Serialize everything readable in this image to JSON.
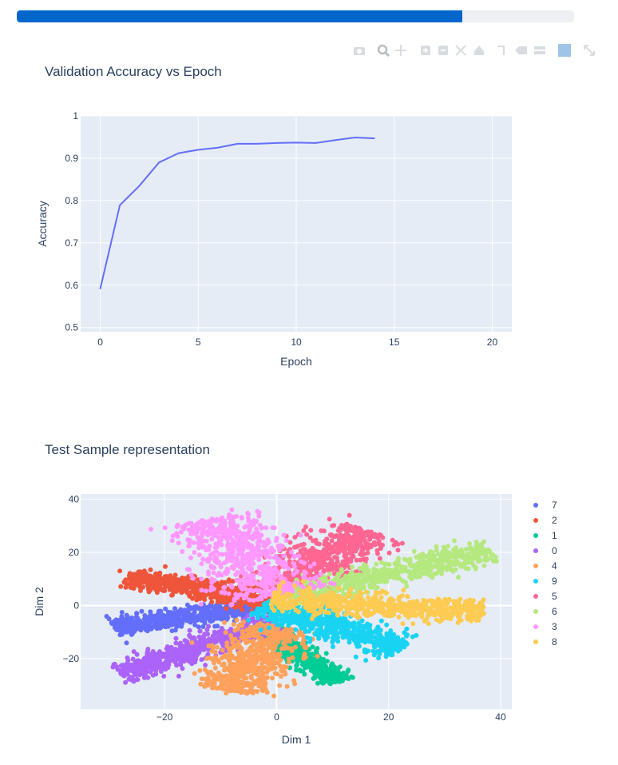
{
  "progress": {
    "value": 0.8
  },
  "modebar": {
    "icons": [
      "camera-icon",
      "zoom-icon",
      "pan-icon",
      "zoom-in-icon",
      "zoom-out-icon",
      "autoscale-icon",
      "home-icon",
      "spike-lines-icon",
      "hover-closest-icon",
      "hover-compare-icon",
      "plotly-logo-icon",
      "fullscreen-icon"
    ]
  },
  "chart_data": [
    {
      "type": "line",
      "title": "Validation Accuracy vs Epoch",
      "xlabel": "Epoch",
      "ylabel": "Accuracy",
      "xlim": [
        -1,
        21
      ],
      "ylim": [
        0.49,
        1.0
      ],
      "xticks": [
        0,
        5,
        10,
        15,
        20
      ],
      "xtick_labels": [
        "0",
        "5",
        "10",
        "15",
        "20"
      ],
      "yticks": [
        0.5,
        0.6,
        0.7,
        0.8,
        0.9,
        1.0
      ],
      "ytick_labels": [
        "0.5",
        "0.6",
        "0.7",
        "0.8",
        "0.9",
        "1"
      ],
      "grid": true,
      "color": "#636efa",
      "x": [
        0,
        1,
        2,
        3,
        4,
        5,
        6,
        7,
        8,
        9,
        10,
        11,
        12,
        13,
        14
      ],
      "y": [
        0.591,
        0.789,
        0.835,
        0.89,
        0.912,
        0.92,
        0.925,
        0.934,
        0.934,
        0.936,
        0.937,
        0.936,
        0.943,
        0.949,
        0.947
      ]
    },
    {
      "type": "scatter",
      "title": "Test Sample representation",
      "xlabel": "Dim 1",
      "ylabel": "Dim 2",
      "xlim": [
        -35,
        42
      ],
      "ylim": [
        -39,
        42
      ],
      "xticks": [
        -20,
        0,
        20,
        40
      ],
      "xtick_labels": [
        "−20",
        "0",
        "20",
        "40"
      ],
      "yticks": [
        -20,
        0,
        20,
        40
      ],
      "ytick_labels": [
        "−20",
        "0",
        "20",
        "40"
      ],
      "grid": true,
      "legend_position": "right",
      "series": [
        {
          "name": "7",
          "color": "#636efa",
          "center": [
            -15,
            -4
          ],
          "direction": [
            0.93,
            0.3
          ],
          "length": 30,
          "width": 3.5,
          "points": [
            [
              -29,
              -6
            ],
            [
              -24,
              -7
            ],
            [
              -19,
              -5
            ],
            [
              -14,
              -4
            ],
            [
              -9,
              -2
            ],
            [
              -5,
              -1
            ],
            [
              -2,
              0
            ]
          ]
        },
        {
          "name": "2",
          "color": "#ef553b",
          "center": [
            -13,
            6
          ],
          "direction": [
            0.92,
            -0.3
          ],
          "length": 30,
          "width": 4.0,
          "points": [
            [
              -28,
              13
            ],
            [
              -23,
              10
            ],
            [
              -18,
              8
            ],
            [
              -13,
              6
            ],
            [
              -8,
              4
            ],
            [
              -4,
              2
            ],
            [
              -1,
              1
            ]
          ]
        },
        {
          "name": "1",
          "color": "#00cc96",
          "center": [
            4,
            -18
          ],
          "direction": [
            0.55,
            -0.83
          ],
          "length": 26,
          "width": 3.0,
          "points": [
            [
              0,
              -5
            ],
            [
              2,
              -10
            ],
            [
              4,
              -15
            ],
            [
              6,
              -20
            ],
            [
              7,
              -25
            ],
            [
              8,
              -29
            ]
          ]
        },
        {
          "name": "0",
          "color": "#ab63fa",
          "center": [
            -14,
            -16
          ],
          "direction": [
            0.82,
            0.57
          ],
          "length": 34,
          "width": 4.0,
          "points": [
            [
              -27,
              -29
            ],
            [
              -22,
              -24
            ],
            [
              -17,
              -19
            ],
            [
              -12,
              -14
            ],
            [
              -7,
              -9
            ],
            [
              -3,
              -4
            ]
          ]
        },
        {
          "name": "4",
          "color": "#ffa15a",
          "center": [
            -4,
            -20
          ],
          "direction": [
            0.3,
            0.95
          ],
          "length": 26,
          "width": 7.0,
          "points": [
            [
              -9,
              -33
            ],
            [
              -7,
              -27
            ],
            [
              -5,
              -22
            ],
            [
              -3,
              -16
            ],
            [
              -2,
              -10
            ],
            [
              0,
              -4
            ]
          ]
        },
        {
          "name": "9",
          "color": "#19d3f3",
          "center": [
            10,
            -8
          ],
          "direction": [
            0.85,
            -0.52
          ],
          "length": 30,
          "width": 5.0,
          "points": [
            [
              2,
              -2
            ],
            [
              6,
              -5
            ],
            [
              10,
              -8
            ],
            [
              14,
              -11
            ],
            [
              18,
              -13
            ]
          ]
        },
        {
          "name": "5",
          "color": "#ff6692",
          "center": [
            8,
            17
          ],
          "direction": [
            0.58,
            0.81
          ],
          "length": 28,
          "width": 7.0,
          "points": [
            [
              1,
              6
            ],
            [
              4,
              11
            ],
            [
              7,
              16
            ],
            [
              10,
              21
            ],
            [
              12,
              26
            ],
            [
              13,
              34
            ]
          ]
        },
        {
          "name": "6",
          "color": "#b6e880",
          "center": [
            20,
            12
          ],
          "direction": [
            0.9,
            0.43
          ],
          "length": 40,
          "width": 4.5,
          "points": [
            [
              4,
              4
            ],
            [
              10,
              7
            ],
            [
              16,
              10
            ],
            [
              22,
              13
            ],
            [
              28,
              17
            ],
            [
              33,
              21
            ],
            [
              37,
              24
            ]
          ]
        },
        {
          "name": "3",
          "color": "#ff97ff",
          "center": [
            -6,
            18
          ],
          "direction": [
            0.35,
            -0.94
          ],
          "length": 32,
          "width": 9.0,
          "points": [
            [
              -8,
              36
            ],
            [
              -7,
              30
            ],
            [
              -6,
              24
            ],
            [
              -5,
              18
            ],
            [
              -3,
              12
            ],
            [
              -2,
              6
            ],
            [
              0,
              2
            ]
          ]
        },
        {
          "name": "8",
          "color": "#fecb52",
          "center": [
            18,
            0
          ],
          "direction": [
            0.99,
            -0.12
          ],
          "length": 38,
          "width": 4.5,
          "points": [
            [
              2,
              1
            ],
            [
              8,
              0
            ],
            [
              14,
              0
            ],
            [
              20,
              -1
            ],
            [
              26,
              -2
            ],
            [
              32,
              -2
            ],
            [
              37,
              -3
            ]
          ]
        }
      ]
    }
  ]
}
